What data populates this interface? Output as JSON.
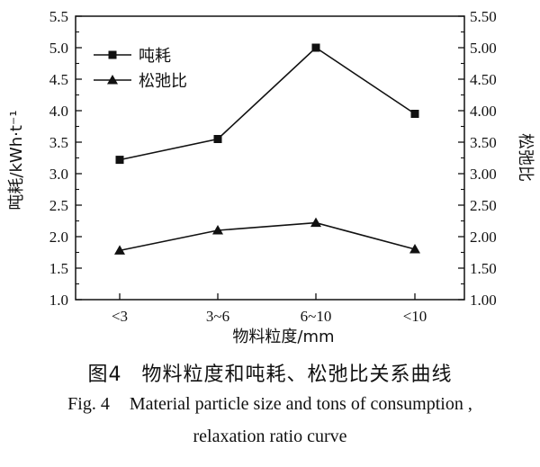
{
  "chart_data": {
    "type": "line",
    "categories": [
      "<3",
      "3~6",
      "6~10",
      "<10"
    ],
    "series": [
      {
        "name": "吨耗",
        "marker": "square",
        "axis": "left",
        "values": [
          3.22,
          3.55,
          5.0,
          3.95
        ]
      },
      {
        "name": "松弛比",
        "marker": "triangle",
        "axis": "right",
        "values": [
          1.78,
          2.1,
          2.22,
          1.8
        ]
      }
    ],
    "xlabel": "物料粒度/mm",
    "ylabel_left": "吨耗/kWh·t⁻¹",
    "ylabel_right": "松弛比",
    "ylim_left": [
      1.0,
      5.5
    ],
    "ylim_right": [
      1.0,
      5.5
    ],
    "yticks_left": [
      "1.0",
      "1.5",
      "2.0",
      "2.5",
      "3.0",
      "3.5",
      "4.0",
      "4.5",
      "5.0",
      "5.5"
    ],
    "yticks_right": [
      "1.00",
      "1.50",
      "2.00",
      "2.50",
      "3.00",
      "3.50",
      "4.00",
      "4.50",
      "5.00",
      "5.50"
    ],
    "legend_position": "top-left",
    "grid": false,
    "line_color": "#111111"
  },
  "caption": {
    "cn_label": "图4",
    "cn_text": "物料粒度和吨耗、松弛比关系曲线",
    "en_label": "Fig. 4",
    "en_line1": "Material particle size and tons of consumption ,",
    "en_line2": "relaxation ratio curve"
  }
}
